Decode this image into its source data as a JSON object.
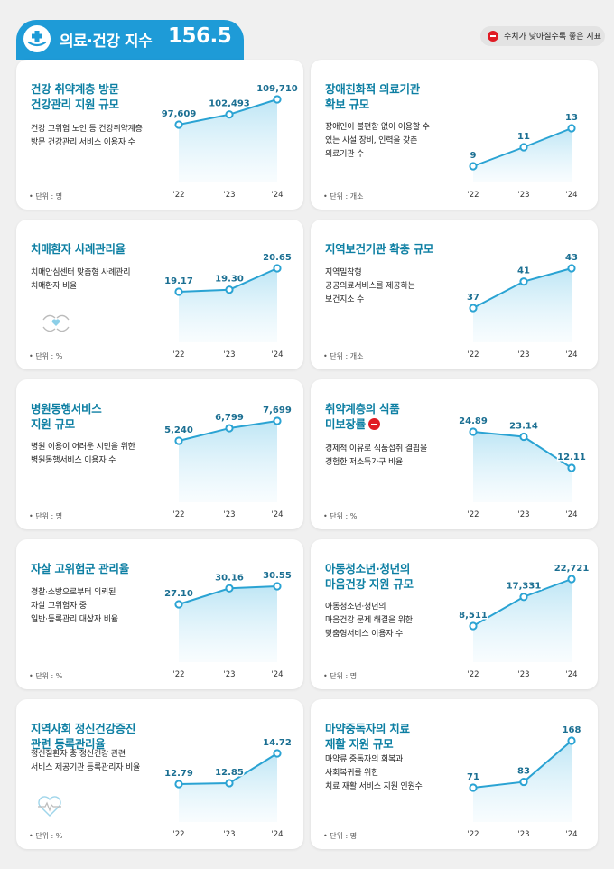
{
  "header": {
    "title": "의료·건강 지수",
    "value": "156.5"
  },
  "legend": {
    "text": "수치가 낮아질수록 좋은 지표"
  },
  "colors": {
    "accent": "#1e9bd7",
    "title": "#0d7fa3",
    "line": "#2aa3d3",
    "negative_marker": "#e01b24"
  },
  "chart_data": [
    {
      "type": "area",
      "title": "건강 취약계층 방문\n건강관리 지원 규모",
      "description": "건강 고위험 노인 등 건강취약계층\n방문 건강관리 서비스 이용자 수",
      "unit": "• 단위 : 명",
      "x": [
        "'22",
        "'23",
        "'24"
      ],
      "values": [
        97609,
        102493,
        109710
      ],
      "labels": [
        "97,609",
        "102,493",
        "109,710"
      ]
    },
    {
      "type": "area",
      "title": "장애친화적 의료기관\n확보 규모",
      "description": "장애인이 불편함 없이 이용할 수\n있는 시설·장비, 인력을 갖춘\n의료기관 수",
      "unit": "• 단위 : 개소",
      "x": [
        "'22",
        "'23",
        "'24"
      ],
      "values": [
        9,
        11,
        13
      ],
      "labels": [
        "9",
        "11",
        "13"
      ]
    },
    {
      "type": "area",
      "title": "치매환자 사례관리율",
      "description": "치매안심센터 맞춤형 사례관리\n치매환자 비율",
      "unit": "• 단위 : %",
      "x": [
        "'22",
        "'23",
        "'24"
      ],
      "values": [
        19.17,
        19.3,
        20.65
      ],
      "labels": [
        "19.17",
        "19.30",
        "20.65"
      ]
    },
    {
      "type": "area",
      "title": "지역보건기관 확충 규모",
      "description": "지역밀착형\n공공의료서비스를 제공하는\n보건지소 수",
      "unit": "• 단위 : 개소",
      "x": [
        "'22",
        "'23",
        "'24"
      ],
      "values": [
        37,
        41,
        43
      ],
      "labels": [
        "37",
        "41",
        "43"
      ]
    },
    {
      "type": "area",
      "title": "병원동행서비스\n지원 규모",
      "description": "병원 이용이 어려운 시민을 위한\n병원동행서비스 이용자 수",
      "unit": "• 단위 : 명",
      "x": [
        "'22",
        "'23",
        "'24"
      ],
      "values": [
        5240,
        6799,
        7699
      ],
      "labels": [
        "5,240",
        "6,799",
        "7,699"
      ]
    },
    {
      "type": "area",
      "title": "취약계층의 식품\n미보장률",
      "lower_is_better": true,
      "description": "경제적 이유로 식품섭취 결핍을\n경험한 저소득가구 비율",
      "unit": "• 단위 : %",
      "x": [
        "'22",
        "'23",
        "'24"
      ],
      "values": [
        24.89,
        23.14,
        12.11
      ],
      "labels": [
        "24.89",
        "23.14",
        "12.11"
      ]
    },
    {
      "type": "area",
      "title": "자살 고위험군 관리율",
      "description": "경찰·소방으로부터 의뢰된\n자살 고위험자 중\n일반·등록관리 대상자 비율",
      "unit": "• 단위 : %",
      "x": [
        "'22",
        "'23",
        "'24"
      ],
      "values": [
        27.1,
        30.16,
        30.55
      ],
      "labels": [
        "27.10",
        "30.16",
        "30.55"
      ]
    },
    {
      "type": "area",
      "title": "아동청소년·청년의\n마음건강 지원 규모",
      "description": "아동청소년·청년의\n마음건강 문제 해결을 위한\n맞춤형서비스 이용자 수",
      "unit": "• 단위 : 명",
      "x": [
        "'22",
        "'23",
        "'24"
      ],
      "values": [
        8511,
        17331,
        22721
      ],
      "labels": [
        "8,511",
        "17,331",
        "22,721"
      ]
    },
    {
      "type": "area",
      "title": "지역사회 정신건강증진\n관련 등록관리율",
      "description": "정신질환자 중 정신건강 관련\n서비스 제공기관 등록관리자 비율",
      "unit": "• 단위 : %",
      "x": [
        "'22",
        "'23",
        "'24"
      ],
      "values": [
        12.79,
        12.85,
        14.72
      ],
      "labels": [
        "12.79",
        "12.85",
        "14.72"
      ]
    },
    {
      "type": "area",
      "title": "마약중독자의 치료\n재활 지원 규모",
      "description": "마약류 중독자의 회복과\n사회복귀를 위한\n치료 재활 서비스 지원 인원수",
      "unit": "• 단위 : 명",
      "x": [
        "'22",
        "'23",
        "'24"
      ],
      "values": [
        71,
        83,
        168
      ],
      "labels": [
        "71",
        "83",
        "168"
      ]
    }
  ]
}
